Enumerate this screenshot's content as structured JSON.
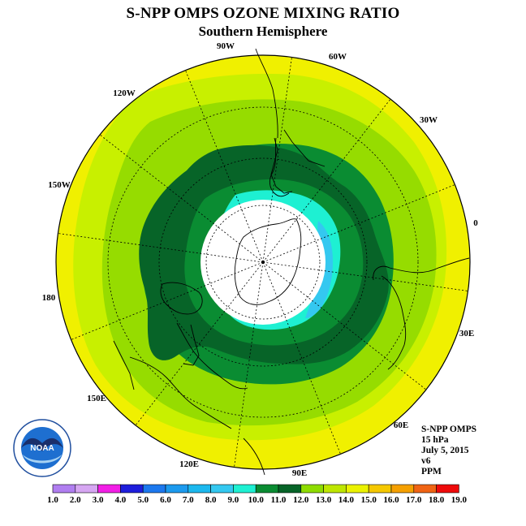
{
  "title": "S-NPP OMPS OZONE MIXING RATIO",
  "subtitle": "Southern Hemisphere",
  "info": {
    "instrument": "S-NPP OMPS",
    "level": "15 hPa",
    "date": "July 5, 2015",
    "version": "v6",
    "units": "PPM"
  },
  "logo_text": "NOAA",
  "longitude_labels": [
    "90W",
    "60W",
    "30W",
    "0",
    "30E",
    "60E",
    "90E",
    "120E",
    "150E",
    "180",
    "150W",
    "120W"
  ],
  "colorbar": {
    "ticks": [
      "1.0",
      "2.0",
      "3.0",
      "4.0",
      "5.0",
      "6.0",
      "7.0",
      "8.0",
      "9.0",
      "10.0",
      "11.0",
      "12.0",
      "13.0",
      "14.0",
      "15.0",
      "16.0",
      "17.0",
      "18.0",
      "19.0"
    ],
    "colors": [
      "#b07ef0",
      "#d6a6f2",
      "#f21fe6",
      "#1e1edc",
      "#1c78ee",
      "#1c9aee",
      "#1cb8ee",
      "#34c8f0",
      "#1ef0d2",
      "#0a8c32",
      "#076428",
      "#8edc00",
      "#bee600",
      "#ebf200",
      "#f5c800",
      "#f5a000",
      "#f06414",
      "#ee0a0a",
      "#7a5032"
    ]
  },
  "field_colors": {
    "yellow": "#f0f000",
    "yellow_green": "#c8f000",
    "light_green": "#96dc00",
    "mid_green": "#0a8c32",
    "dark_green": "#076428",
    "cyan": "#1ef0d2",
    "light_blue": "#34c8f0",
    "orange": "#f5c800",
    "no_data": "#ffffff"
  }
}
